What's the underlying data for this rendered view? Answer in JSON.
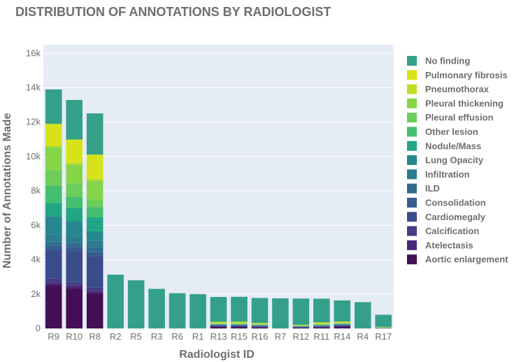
{
  "chart_data": {
    "type": "bar",
    "stacked": true,
    "title": "DISTRIBUTION OF ANNOTATIONS BY RADIOLOGIST",
    "xlabel": "Radiologist ID",
    "ylabel": "Number of Annotations Made",
    "ylim": [
      0,
      16500
    ],
    "yticks": [
      0,
      2000,
      4000,
      6000,
      8000,
      10000,
      12000,
      14000,
      16000
    ],
    "ytick_labels": [
      "0",
      "2k",
      "4k",
      "6k",
      "8k",
      "10k",
      "12k",
      "14k",
      "16k"
    ],
    "grid": true,
    "legend_position": "right",
    "categories": [
      "R9",
      "R10",
      "R8",
      "R2",
      "R5",
      "R3",
      "R6",
      "R1",
      "R13",
      "R15",
      "R16",
      "R7",
      "R12",
      "R11",
      "R14",
      "R4",
      "R17"
    ],
    "series": [
      {
        "name": "Aortic enlargement",
        "color": "#440f56",
        "values": [
          2500,
          2350,
          2050,
          0,
          0,
          0,
          0,
          0,
          80,
          80,
          60,
          0,
          40,
          60,
          100,
          0,
          10
        ]
      },
      {
        "name": "Atelectasis",
        "color": "#482878",
        "values": [
          150,
          140,
          120,
          0,
          0,
          0,
          0,
          0,
          20,
          20,
          15,
          0,
          10,
          15,
          20,
          0,
          5
        ]
      },
      {
        "name": "Calcification",
        "color": "#433e85",
        "values": [
          250,
          200,
          220,
          0,
          0,
          0,
          0,
          0,
          20,
          20,
          15,
          0,
          10,
          15,
          20,
          0,
          5
        ]
      },
      {
        "name": "Cardiomegaly",
        "color": "#3a4c8a",
        "values": [
          1650,
          1800,
          1820,
          0,
          0,
          0,
          0,
          0,
          60,
          60,
          50,
          0,
          40,
          50,
          60,
          0,
          10
        ]
      },
      {
        "name": "Consolidation",
        "color": "#355d8d",
        "values": [
          250,
          250,
          250,
          0,
          0,
          0,
          0,
          0,
          10,
          10,
          10,
          0,
          5,
          10,
          10,
          0,
          3
        ]
      },
      {
        "name": "ILD",
        "color": "#2f6c8e",
        "values": [
          250,
          250,
          250,
          0,
          0,
          0,
          0,
          0,
          10,
          10,
          10,
          0,
          5,
          10,
          10,
          0,
          3
        ]
      },
      {
        "name": "Infiltration",
        "color": "#2b7c8e",
        "values": [
          400,
          400,
          400,
          0,
          0,
          0,
          0,
          0,
          10,
          10,
          10,
          0,
          5,
          10,
          10,
          0,
          3
        ]
      },
      {
        "name": "Lung Opacity",
        "color": "#26888e",
        "values": [
          1050,
          850,
          550,
          0,
          0,
          0,
          0,
          0,
          20,
          20,
          20,
          0,
          10,
          20,
          20,
          0,
          5
        ]
      },
      {
        "name": "Nodule/Mass",
        "color": "#21a685",
        "values": [
          800,
          750,
          800,
          0,
          0,
          0,
          0,
          0,
          20,
          20,
          20,
          0,
          10,
          20,
          20,
          0,
          5
        ]
      },
      {
        "name": "Other lesion",
        "color": "#44bf70",
        "values": [
          1000,
          650,
          600,
          0,
          0,
          0,
          0,
          0,
          10,
          10,
          10,
          0,
          5,
          10,
          10,
          0,
          3
        ]
      },
      {
        "name": "Pleural effusion",
        "color": "#6ccd5a",
        "values": [
          900,
          800,
          450,
          0,
          0,
          0,
          0,
          0,
          10,
          10,
          10,
          0,
          5,
          10,
          10,
          0,
          3
        ]
      },
      {
        "name": "Pleural thickening",
        "color": "#86d549",
        "values": [
          1350,
          1100,
          1100,
          0,
          0,
          0,
          0,
          0,
          30,
          40,
          30,
          0,
          20,
          40,
          40,
          0,
          10
        ]
      },
      {
        "name": "Pneumothorax",
        "color": "#bddf26",
        "values": [
          100,
          100,
          100,
          0,
          0,
          0,
          0,
          0,
          10,
          10,
          10,
          0,
          5,
          10,
          10,
          0,
          3
        ]
      },
      {
        "name": "Pulmonary fibrosis",
        "color": "#d8e219",
        "values": [
          1250,
          1350,
          1400,
          0,
          0,
          0,
          0,
          0,
          70,
          70,
          50,
          0,
          40,
          70,
          60,
          0,
          20
        ]
      },
      {
        "name": "No finding",
        "color": "#35a08a",
        "values": [
          2000,
          2300,
          2400,
          3130,
          2800,
          2300,
          2050,
          2000,
          1450,
          1450,
          1450,
          1750,
          1530,
          1380,
          1230,
          1530,
          710
        ]
      }
    ],
    "legend_order": [
      "No finding",
      "Pulmonary fibrosis",
      "Pneumothorax",
      "Pleural thickening",
      "Pleural effusion",
      "Other lesion",
      "Nodule/Mass",
      "Lung Opacity",
      "Infiltration",
      "ILD",
      "Consolidation",
      "Cardiomegaly",
      "Calcification",
      "Atelectasis",
      "Aortic enlargement"
    ]
  }
}
